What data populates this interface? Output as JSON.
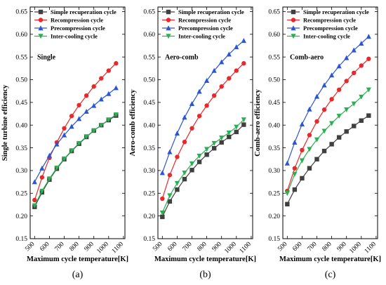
{
  "chart_data": [
    {
      "type": "line",
      "panel_label": "(a)",
      "annotation": "Single",
      "xlabel": "Maximum cycle temperature[K]",
      "ylabel": "Single turbine efficiency",
      "xlim": [
        470,
        1110
      ],
      "ylim": [
        0.15,
        0.66
      ],
      "xticks": [
        500,
        600,
        700,
        800,
        900,
        1000,
        1100
      ],
      "yticks": [
        0.15,
        0.2,
        0.25,
        0.3,
        0.35,
        0.4,
        0.45,
        0.5,
        0.55,
        0.6,
        0.65
      ],
      "legend_position": "top-left",
      "grid": false,
      "x": [
        500,
        550,
        600,
        650,
        700,
        750,
        800,
        850,
        900,
        950,
        1000,
        1050
      ],
      "series": [
        {
          "name": "Simple recuperation cycle",
          "color": "#404040",
          "marker": "square",
          "values": [
            0.22,
            0.252,
            0.28,
            0.304,
            0.325,
            0.343,
            0.359,
            0.374,
            0.388,
            0.4,
            0.411,
            0.421
          ]
        },
        {
          "name": "Recompression cycle",
          "color": "#e8282b",
          "marker": "circle",
          "values": [
            0.235,
            0.285,
            0.328,
            0.362,
            0.393,
            0.42,
            0.444,
            0.465,
            0.485,
            0.503,
            0.52,
            0.536
          ]
        },
        {
          "name": "Precompression cycle",
          "color": "#2a55d4",
          "marker": "triangle-up",
          "values": [
            0.275,
            0.305,
            0.333,
            0.358,
            0.378,
            0.397,
            0.414,
            0.43,
            0.443,
            0.457,
            0.469,
            0.482
          ]
        },
        {
          "name": "Inter-cooling cycle",
          "color": "#2ab052",
          "marker": "triangle-down",
          "values": [
            0.223,
            0.255,
            0.282,
            0.306,
            0.326,
            0.344,
            0.36,
            0.375,
            0.388,
            0.4,
            0.412,
            0.423
          ]
        }
      ]
    },
    {
      "type": "line",
      "panel_label": "(b)",
      "annotation": "Aero-comb",
      "xlabel": "Maximum cycle temperature[K]",
      "ylabel": "Aero-comb efficiency",
      "xlim": [
        470,
        1110
      ],
      "ylim": [
        0.15,
        0.66
      ],
      "xticks": [
        500,
        600,
        700,
        800,
        900,
        1000,
        1100
      ],
      "yticks": [
        0.15,
        0.2,
        0.25,
        0.3,
        0.35,
        0.4,
        0.45,
        0.5,
        0.55,
        0.6,
        0.65
      ],
      "legend_position": "top-left",
      "grid": false,
      "x": [
        500,
        550,
        600,
        650,
        700,
        750,
        800,
        850,
        900,
        950,
        1000,
        1050
      ],
      "series": [
        {
          "name": "Simple recuperation cycle",
          "color": "#404040",
          "marker": "square",
          "values": [
            0.198,
            0.232,
            0.258,
            0.281,
            0.301,
            0.319,
            0.335,
            0.349,
            0.362,
            0.374,
            0.385,
            0.401
          ]
        },
        {
          "name": "Recompression cycle",
          "color": "#e8282b",
          "marker": "circle",
          "values": [
            0.238,
            0.29,
            0.33,
            0.363,
            0.393,
            0.42,
            0.443,
            0.465,
            0.485,
            0.503,
            0.52,
            0.536
          ]
        },
        {
          "name": "Precompression cycle",
          "color": "#2a55d4",
          "marker": "triangle-up",
          "values": [
            0.295,
            0.341,
            0.382,
            0.417,
            0.447,
            0.474,
            0.498,
            0.52,
            0.539,
            0.556,
            0.572,
            0.586
          ]
        },
        {
          "name": "Inter-cooling cycle",
          "color": "#2ab052",
          "marker": "triangle-down",
          "values": [
            0.207,
            0.245,
            0.272,
            0.295,
            0.315,
            0.332,
            0.347,
            0.36,
            0.372,
            0.383,
            0.396,
            0.412
          ]
        }
      ]
    },
    {
      "type": "line",
      "panel_label": "(c)",
      "annotation": "Comb-aero",
      "xlabel": "Maximum cycle temperature[K]",
      "ylabel": "Comb-aero efficiency",
      "xlim": [
        470,
        1110
      ],
      "ylim": [
        0.15,
        0.66
      ],
      "xticks": [
        500,
        600,
        700,
        800,
        900,
        1000,
        1100
      ],
      "yticks": [
        0.15,
        0.2,
        0.25,
        0.3,
        0.35,
        0.4,
        0.45,
        0.5,
        0.55,
        0.6,
        0.65
      ],
      "legend_position": "top-left",
      "grid": false,
      "x": [
        500,
        550,
        600,
        650,
        700,
        750,
        800,
        850,
        900,
        950,
        1000,
        1050
      ],
      "series": [
        {
          "name": "Simple recuperation cycle",
          "color": "#404040",
          "marker": "square",
          "values": [
            0.226,
            0.258,
            0.283,
            0.305,
            0.325,
            0.343,
            0.358,
            0.373,
            0.386,
            0.398,
            0.41,
            0.421
          ]
        },
        {
          "name": "Recompression cycle",
          "color": "#e8282b",
          "marker": "circle",
          "values": [
            0.255,
            0.305,
            0.345,
            0.378,
            0.408,
            0.434,
            0.457,
            0.478,
            0.497,
            0.515,
            0.531,
            0.546
          ]
        },
        {
          "name": "Precompression cycle",
          "color": "#2a55d4",
          "marker": "triangle-up",
          "values": [
            0.316,
            0.362,
            0.402,
            0.435,
            0.463,
            0.488,
            0.51,
            0.53,
            0.548,
            0.565,
            0.58,
            0.595
          ]
        },
        {
          "name": "Inter-cooling cycle",
          "color": "#2ab052",
          "marker": "triangle-down",
          "values": [
            0.25,
            0.292,
            0.322,
            0.347,
            0.368,
            0.387,
            0.404,
            0.42,
            0.434,
            0.447,
            0.462,
            0.478
          ]
        }
      ]
    }
  ]
}
